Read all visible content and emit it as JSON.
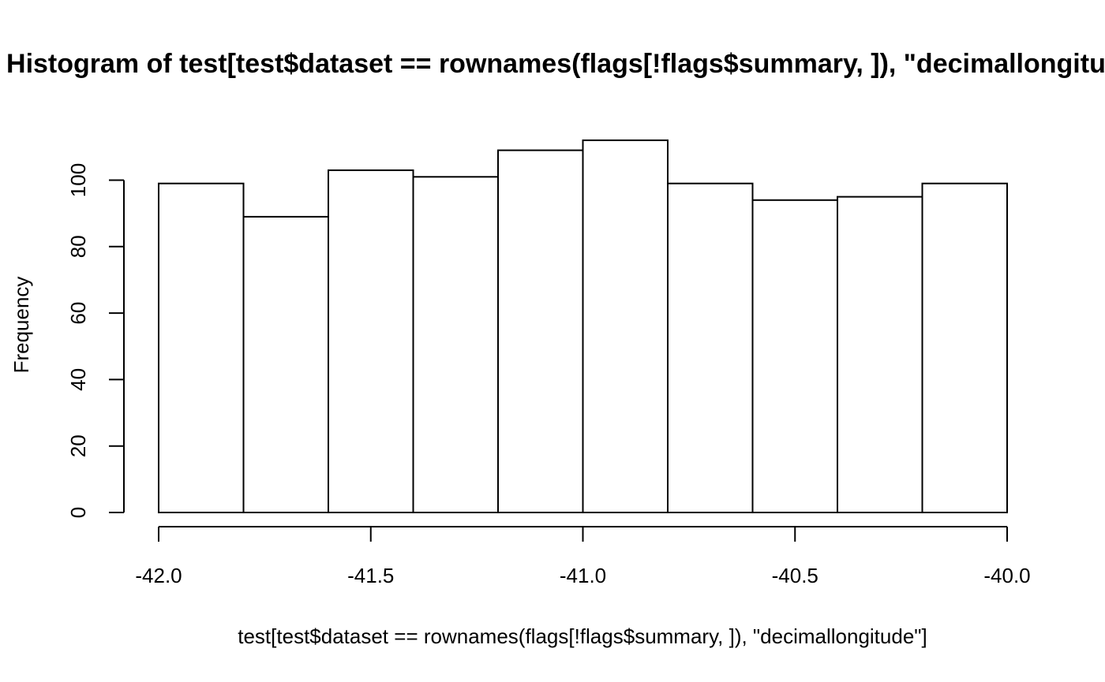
{
  "chart_data": {
    "type": "bar",
    "title": "Histogram of test[test$dataset == rownames(flags[!flags$summary, ]), \"decimallongitude\"]",
    "xlabel": "test[test$dataset == rownames(flags[!flags$summary, ]), \"decimallongitude\"]",
    "ylabel": "Frequency",
    "bin_edges": [
      -42.0,
      -41.8,
      -41.6,
      -41.4,
      -41.2,
      -41.0,
      -40.8,
      -40.6,
      -40.4,
      -40.2,
      -40.0
    ],
    "values": [
      99,
      89,
      103,
      101,
      109,
      112,
      99,
      94,
      95,
      99
    ],
    "xlim": [
      -42.0,
      -40.0
    ],
    "ylim": [
      0,
      112
    ],
    "x_ticks": [
      -42.0,
      -41.5,
      -41.0,
      -40.5,
      -40.0
    ],
    "x_tick_labels": [
      "-42.0",
      "-41.5",
      "-41.0",
      "-40.5",
      "-40.0"
    ],
    "y_ticks": [
      0,
      20,
      40,
      60,
      80,
      100
    ],
    "y_tick_labels": [
      "0",
      "20",
      "40",
      "60",
      "80",
      "100"
    ],
    "grid": false,
    "colors": {
      "bar_fill": "#ffffff",
      "bar_stroke": "#000000",
      "background": "#ffffff"
    }
  }
}
